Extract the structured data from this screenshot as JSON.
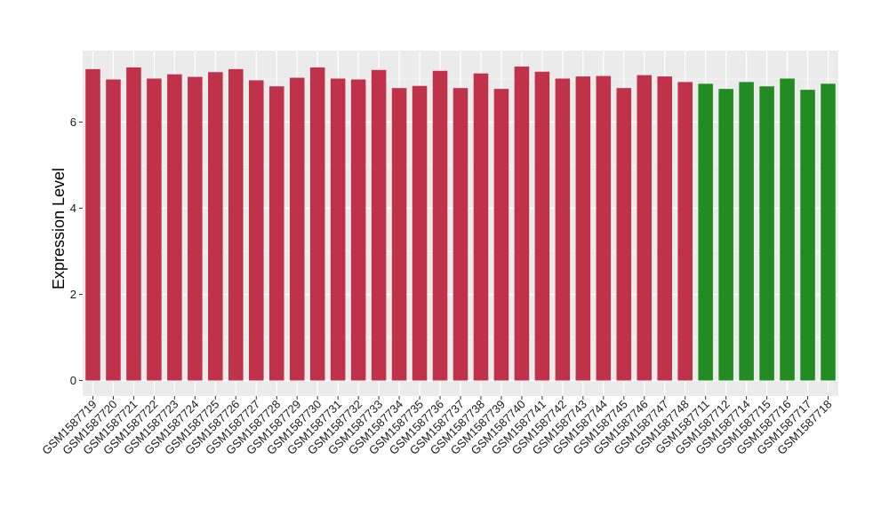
{
  "chart_data": {
    "type": "bar",
    "ylabel": "Expression Level",
    "xlabel": "",
    "title": "",
    "ylim": [
      0,
      7.6
    ],
    "yticks": [
      0,
      2,
      4,
      6
    ],
    "grid": true,
    "legend": "none",
    "colors": {
      "group_a": "#c0314a",
      "group_b": "#228b22",
      "panel": "#ebebeb",
      "grid": "#ffffff"
    },
    "categories": [
      "GSM1587719",
      "GSM1587720",
      "GSM1587721",
      "GSM1587722",
      "GSM1587723",
      "GSM1587724",
      "GSM1587725",
      "GSM1587726",
      "GSM1587727",
      "GSM1587728",
      "GSM1587729",
      "GSM1587730",
      "GSM1587731",
      "GSM1587732",
      "GSM1587733",
      "GSM1587734",
      "GSM1587735",
      "GSM1587736",
      "GSM1587737",
      "GSM1587738",
      "GSM1587739",
      "GSM1587740",
      "GSM1587741",
      "GSM1587742",
      "GSM1587743",
      "GSM1587744",
      "GSM1587745",
      "GSM1587746",
      "GSM1587747",
      "GSM1587748",
      "GSM1587711",
      "GSM1587712",
      "GSM1587714",
      "GSM1587715",
      "GSM1587716",
      "GSM1587717",
      "GSM1587718"
    ],
    "values": [
      7.23,
      6.99,
      7.27,
      7.01,
      7.11,
      7.05,
      7.16,
      7.23,
      6.97,
      6.83,
      7.03,
      7.27,
      7.01,
      6.99,
      7.21,
      6.79,
      6.84,
      7.19,
      6.79,
      7.13,
      6.77,
      7.29,
      7.17,
      7.01,
      7.06,
      7.07,
      6.79,
      7.09,
      7.06,
      6.93,
      6.89,
      6.77,
      6.93,
      6.83,
      7.01,
      6.75,
      6.89
    ],
    "groups": [
      "a",
      "a",
      "a",
      "a",
      "a",
      "a",
      "a",
      "a",
      "a",
      "a",
      "a",
      "a",
      "a",
      "a",
      "a",
      "a",
      "a",
      "a",
      "a",
      "a",
      "a",
      "a",
      "a",
      "a",
      "a",
      "a",
      "a",
      "a",
      "a",
      "a",
      "b",
      "b",
      "b",
      "b",
      "b",
      "b",
      "b"
    ]
  }
}
